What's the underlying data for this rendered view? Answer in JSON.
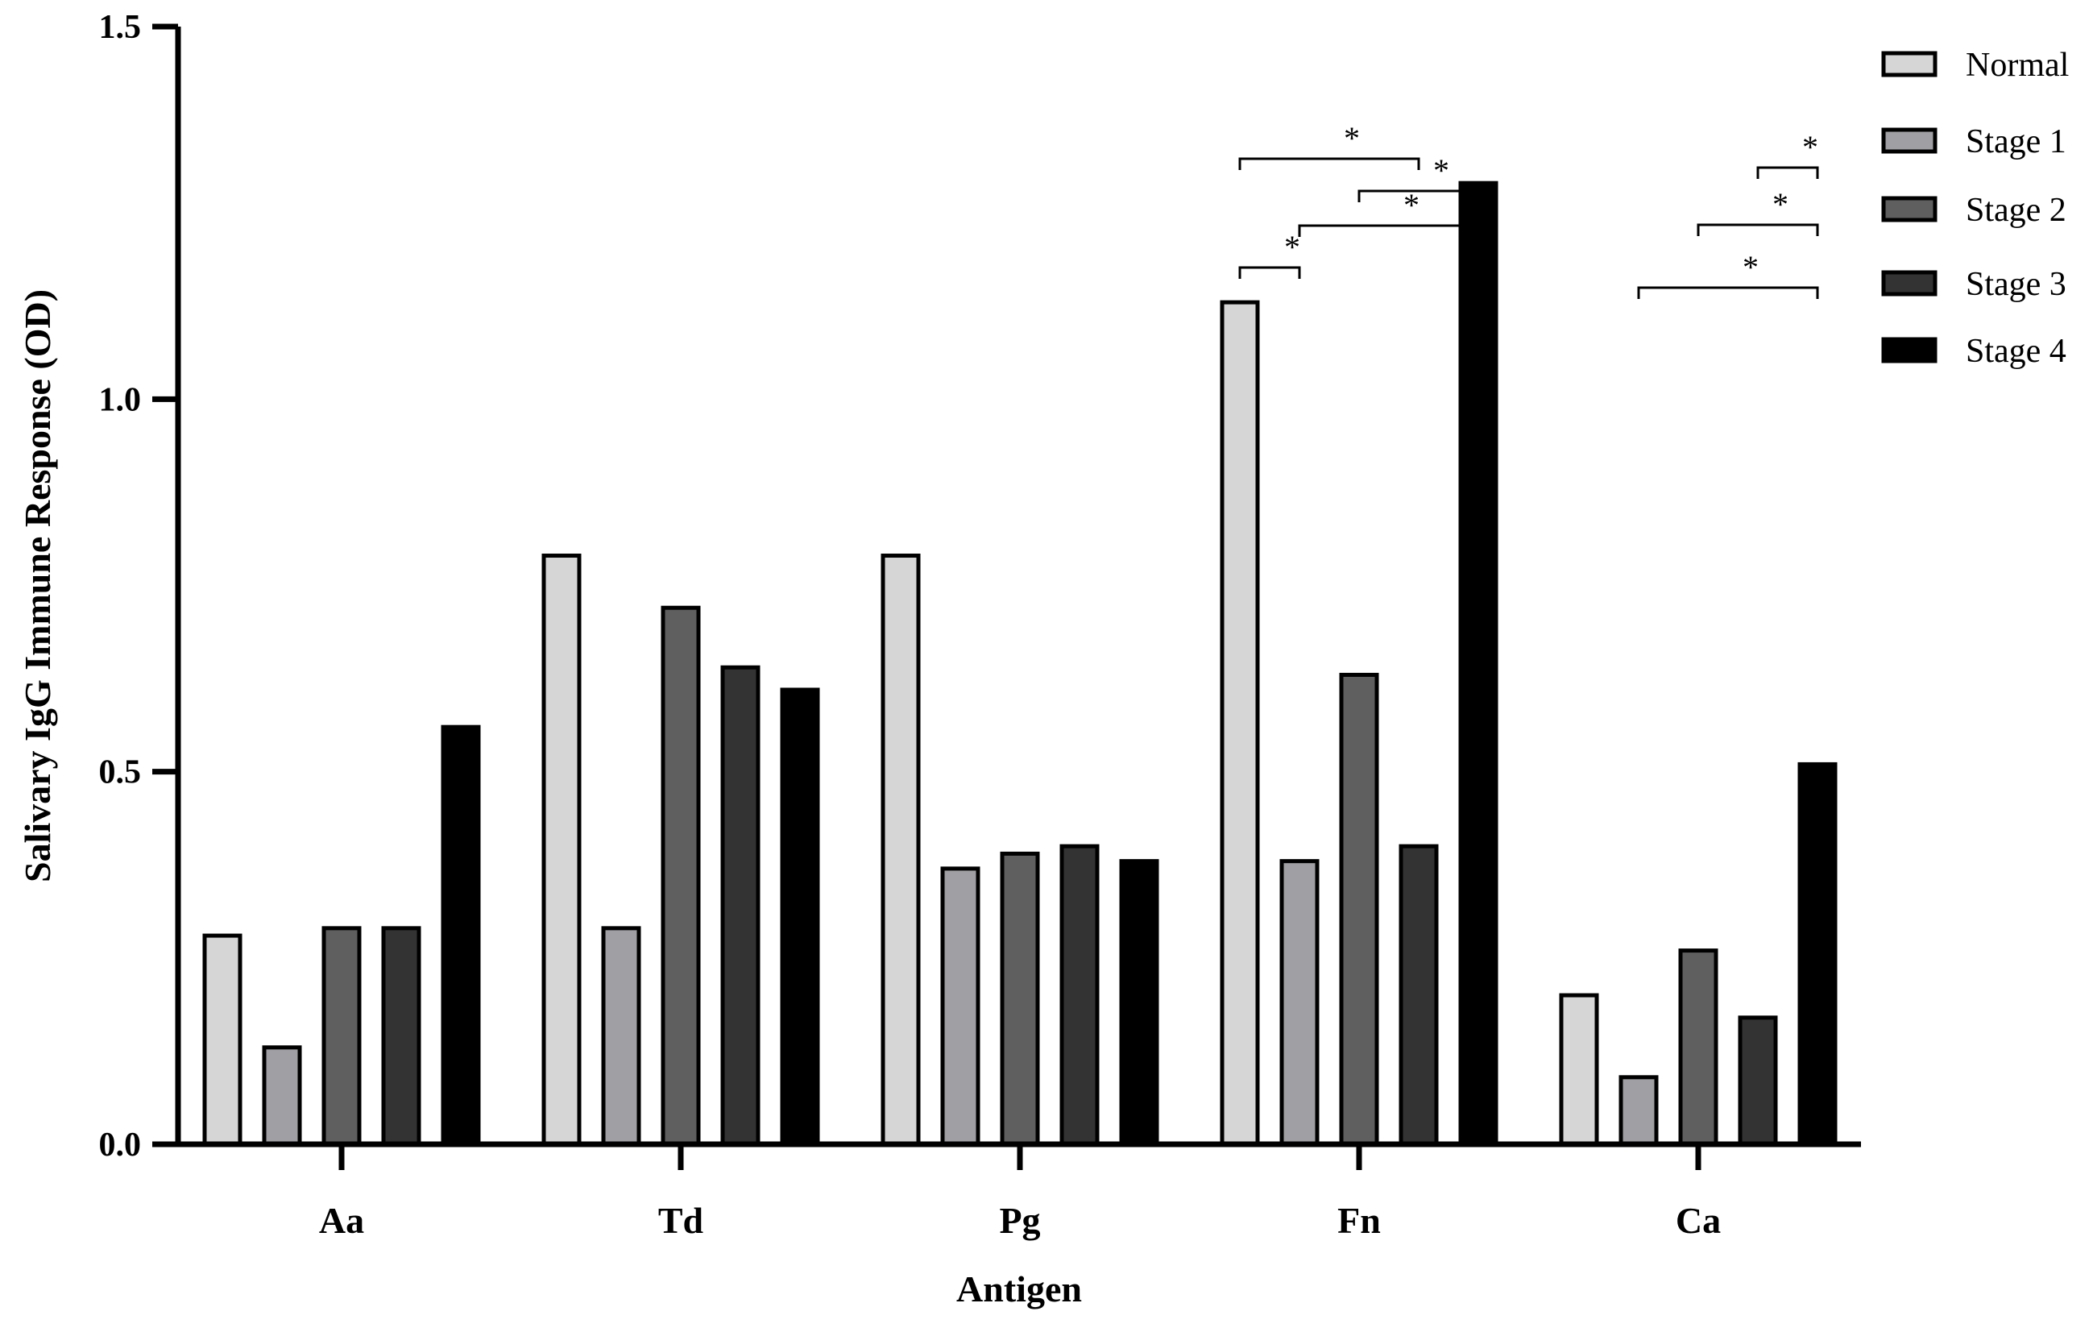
{
  "chart_data": {
    "type": "bar",
    "categories": [
      "Aa",
      "Td",
      "Pg",
      "Fn",
      "Ca"
    ],
    "series": [
      {
        "name": "Normal",
        "color": "#d6d6d6",
        "values": [
          0.28,
          0.79,
          0.79,
          1.13,
          0.2
        ]
      },
      {
        "name": "Stage 1",
        "color": "#a0a0a4",
        "values": [
          0.13,
          0.29,
          0.37,
          0.38,
          0.09
        ]
      },
      {
        "name": "Stage 2",
        "color": "#5f5f5f",
        "values": [
          0.29,
          0.72,
          0.39,
          0.63,
          0.26
        ]
      },
      {
        "name": "Stage 3",
        "color": "#333333",
        "values": [
          0.29,
          0.64,
          0.4,
          0.4,
          0.17
        ]
      },
      {
        "name": "Stage 4",
        "color": "#000000",
        "values": [
          0.56,
          0.61,
          0.38,
          1.29,
          0.51
        ]
      }
    ],
    "xlabel": "Antigen",
    "ylabel": "Salivary IgG Immune Response (OD)",
    "ylim": [
      0,
      1.5
    ],
    "yticks": [
      "0.0",
      "0.5",
      "1.0",
      "1.5"
    ],
    "ytick_values": [
      0,
      0.5,
      1.0,
      1.5
    ],
    "grid": false,
    "legend_position": "top-right",
    "significance": [
      {
        "category": 3,
        "from": 0,
        "to": 1,
        "label": "*"
      },
      {
        "category": 3,
        "from": 0,
        "to": 3,
        "label": "*"
      },
      {
        "category": 3,
        "from": 1,
        "to": 4,
        "label": "*"
      },
      {
        "category": 3,
        "from": 2,
        "to": 4,
        "label": "*"
      },
      {
        "category": 4,
        "from": 1,
        "to": 4,
        "label": "*"
      },
      {
        "category": 4,
        "from": 2,
        "to": 4,
        "label": "*"
      },
      {
        "category": 4,
        "from": 3,
        "to": 4,
        "label": "*"
      }
    ]
  }
}
